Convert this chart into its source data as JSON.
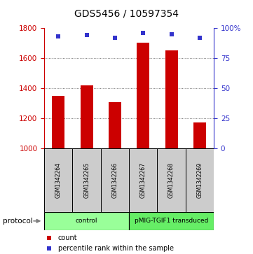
{
  "title": "GDS5456 / 10597354",
  "samples": [
    "GSM1342264",
    "GSM1342265",
    "GSM1342266",
    "GSM1342267",
    "GSM1342268",
    "GSM1342269"
  ],
  "counts": [
    1350,
    1420,
    1310,
    1700,
    1650,
    1175
  ],
  "percentiles": [
    93,
    94,
    92,
    96,
    95,
    92
  ],
  "ylim_left": [
    1000,
    1800
  ],
  "ylim_right": [
    0,
    100
  ],
  "yticks_left": [
    1000,
    1200,
    1400,
    1600,
    1800
  ],
  "yticks_right": [
    0,
    25,
    50,
    75,
    100
  ],
  "bar_color": "#cc0000",
  "dot_color": "#3333cc",
  "groups": [
    {
      "label": "control",
      "indices": [
        0,
        1,
        2
      ],
      "color": "#99ff99"
    },
    {
      "label": "pMIG-TGIF1 transduced",
      "indices": [
        3,
        4,
        5
      ],
      "color": "#66ee66"
    }
  ],
  "sample_box_color": "#cccccc",
  "protocol_label": "protocol",
  "legend_count_label": "count",
  "legend_percentile_label": "percentile rank within the sample",
  "grid_color": "#555555",
  "title_fontsize": 10,
  "tick_fontsize": 7.5
}
